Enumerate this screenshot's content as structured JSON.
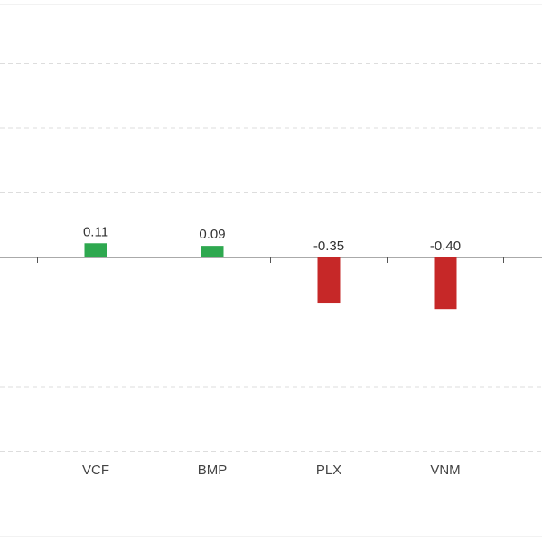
{
  "chart_data": {
    "type": "bar",
    "categories": [
      "VCF",
      "BMP",
      "PLX",
      "VNM"
    ],
    "values": [
      0.11,
      0.09,
      -0.35,
      -0.4
    ],
    "value_labels": [
      "0.11",
      "0.09",
      "-0.35",
      "-0.40"
    ],
    "title": "",
    "xlabel": "",
    "ylabel": "",
    "ylim": [
      -1.5,
      2.0
    ],
    "grid": true,
    "legend": "none",
    "colors": {
      "positive": "#2ea84f",
      "negative": "#c62828",
      "axis": "#555555",
      "grid": "#dddddd"
    }
  }
}
